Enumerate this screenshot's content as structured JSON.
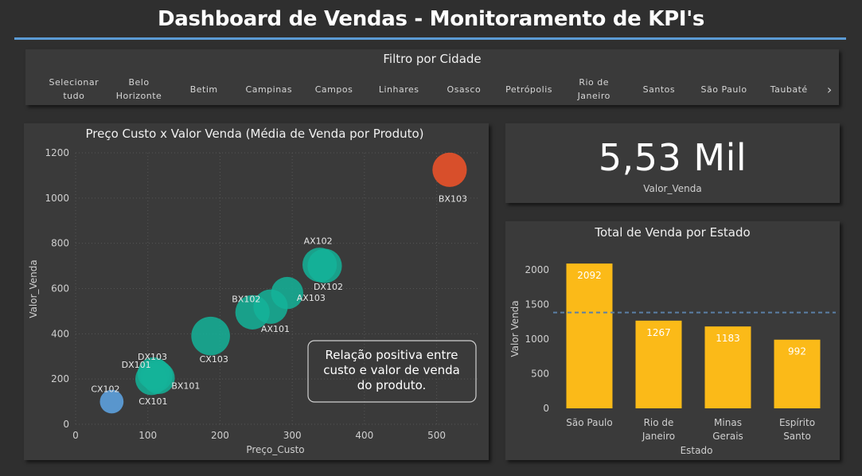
{
  "header": {
    "title": "Dashboard de Vendas - Monitoramento de KPI's"
  },
  "filter": {
    "title": "Filtro por Cidade",
    "items": [
      [
        "Selecionar",
        "tudo"
      ],
      [
        "Belo",
        "Horizonte"
      ],
      [
        "Betim"
      ],
      [
        "Campinas"
      ],
      [
        "Campos"
      ],
      [
        "Linhares"
      ],
      [
        "Osasco"
      ],
      [
        "Petrópolis"
      ],
      [
        "Rio de",
        "Janeiro"
      ],
      [
        "Santos"
      ],
      [
        "São Paulo"
      ],
      [
        "Taubaté"
      ]
    ],
    "next_icon": "chevron-right-icon"
  },
  "kpi": {
    "value": "5,53 Mil",
    "label": "Valor_Venda"
  },
  "colors": {
    "background": "#2f2f2f",
    "panel": "#3a3a3a",
    "accent_line": "#5b9bd5",
    "teal": "#14b399",
    "blue": "#5b9bd5",
    "orange": "#e0502a",
    "bar": "#fbba18"
  },
  "chart_data": [
    {
      "type": "scatter",
      "title": "Preço Custo x Valor Venda (Média de Venda por Produto)",
      "xlabel": "Preço_Custo",
      "ylabel": "Valor_Venda",
      "xlim": [
        0,
        560
      ],
      "ylim": [
        0,
        1200
      ],
      "xticks": [
        0,
        100,
        200,
        300,
        400,
        500
      ],
      "yticks": [
        0,
        200,
        400,
        600,
        800,
        1000,
        1200
      ],
      "grid": true,
      "points": [
        {
          "label": "CX102",
          "x": 50,
          "y": 100,
          "size": 0.55,
          "color": "blue"
        },
        {
          "label": "DX103",
          "x": 108,
          "y": 225,
          "size": 0.75,
          "color": "teal"
        },
        {
          "label": "DX101",
          "x": 112,
          "y": 215,
          "size": 0.75,
          "color": "teal"
        },
        {
          "label": "BX101",
          "x": 115,
          "y": 205,
          "size": 0.75,
          "color": "teal"
        },
        {
          "label": "CX101",
          "x": 105,
          "y": 200,
          "size": 0.75,
          "color": "teal"
        },
        {
          "label": "CX103",
          "x": 187,
          "y": 390,
          "size": 0.9,
          "color": "teal"
        },
        {
          "label": "BX102",
          "x": 245,
          "y": 495,
          "size": 0.8,
          "color": "teal"
        },
        {
          "label": "AX101",
          "x": 270,
          "y": 520,
          "size": 0.8,
          "color": "teal"
        },
        {
          "label": "AX103",
          "x": 293,
          "y": 580,
          "size": 0.75,
          "color": "teal"
        },
        {
          "label": "AX102",
          "x": 338,
          "y": 705,
          "size": 0.8,
          "color": "teal"
        },
        {
          "label": "DX102",
          "x": 345,
          "y": 700,
          "size": 0.8,
          "color": "teal"
        },
        {
          "label": "BX103",
          "x": 518,
          "y": 1125,
          "size": 0.8,
          "color": "orange"
        }
      ],
      "annotation": [
        "Relação positiva entre",
        "custo e valor de venda",
        "do produto."
      ]
    },
    {
      "type": "bar",
      "title": "Total de Venda por Estado",
      "xlabel": "Estado",
      "ylabel": "Valor Venda",
      "ylim": [
        0,
        2300
      ],
      "yticks": [
        0,
        500,
        1000,
        1500,
        2000
      ],
      "categories": [
        [
          "São Paulo"
        ],
        [
          "Rio de",
          "Janeiro"
        ],
        [
          "Minas",
          "Gerais"
        ],
        [
          "Espírito",
          "Santo"
        ]
      ],
      "values": [
        2092,
        1267,
        1183,
        992
      ],
      "average_line": 1384,
      "data_labels": [
        "2092",
        "1267",
        "1183",
        "992"
      ]
    }
  ]
}
